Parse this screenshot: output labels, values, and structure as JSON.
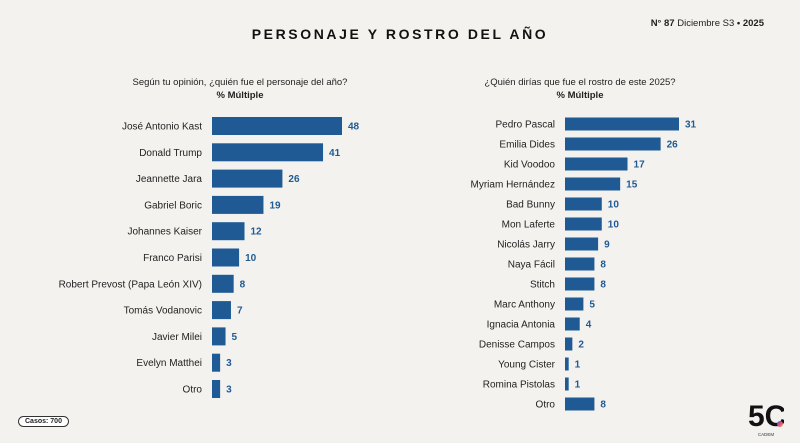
{
  "header": {
    "title": "PERSONAJE Y ROSTRO DEL AÑO",
    "issue_no_label": "N°",
    "issue_no": "87",
    "issue_period": "Diciembre S3",
    "issue_sep": "•",
    "issue_year": "2025"
  },
  "footer": {
    "casos": "Casos: 700",
    "logo_text": "5C",
    "logo_sub": "CADEM"
  },
  "colors": {
    "bar": "#1f5a94",
    "value": "#1f5a94",
    "text": "#222222"
  },
  "chart_data": [
    {
      "type": "bar",
      "orientation": "horizontal",
      "title": "Según tu opinión, ¿quién fue el personaje del año?",
      "subtitle": "% Múltiple",
      "categories": [
        "José Antonio Kast",
        "Donald Trump",
        "Jeannette Jara",
        "Gabriel Boric",
        "Johannes Kaiser",
        "Franco Parisi",
        "Robert Prevost (Papa León XIV)",
        "Tomás Vodanovic",
        "Javier Milei",
        "Evelyn Matthei",
        "Otro"
      ],
      "values": [
        48,
        41,
        26,
        19,
        12,
        10,
        8,
        7,
        5,
        3,
        3
      ],
      "xlim": [
        0,
        48
      ],
      "grid": false,
      "legend": "none"
    },
    {
      "type": "bar",
      "orientation": "horizontal",
      "title": "¿Quién dirías que fue el rostro de este 2025?",
      "subtitle": "% Múltiple",
      "categories": [
        "Pedro Pascal",
        "Emilia Dides",
        "Kid Voodoo",
        "Myriam Hernández",
        "Bad Bunny",
        "Mon Laferte",
        "Nicolás Jarry",
        "Naya Fácil",
        "Stitch",
        "Marc Anthony",
        "Ignacia Antonia",
        "Denisse Campos",
        "Young Cister",
        "Romina Pistolas",
        "Otro"
      ],
      "values": [
        31,
        26,
        17,
        15,
        10,
        10,
        9,
        8,
        8,
        5,
        4,
        2,
        1,
        1,
        8
      ],
      "xlim": [
        0,
        31
      ],
      "grid": false,
      "legend": "none"
    }
  ]
}
